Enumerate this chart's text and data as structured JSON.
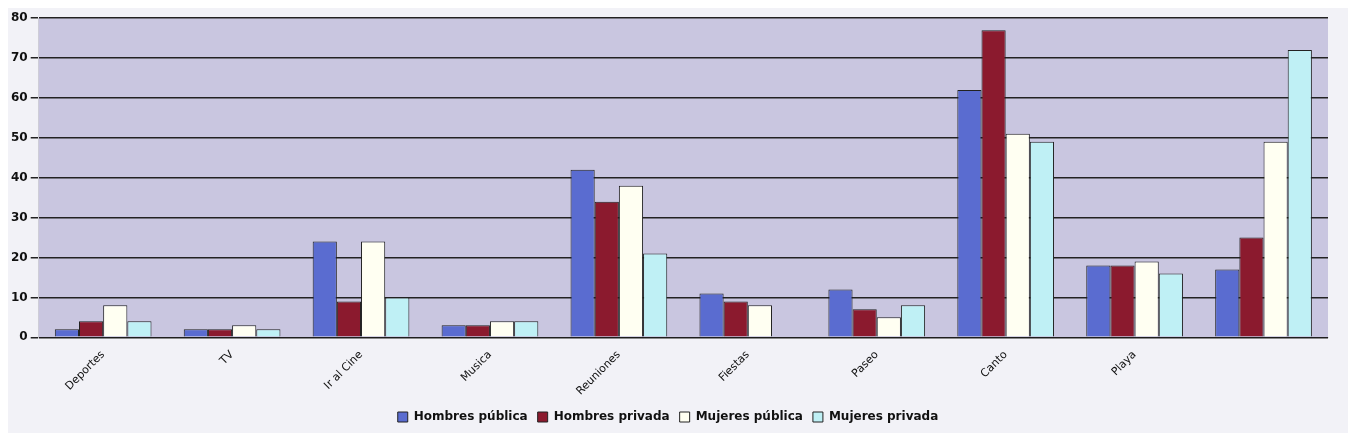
{
  "chart_data": {
    "type": "bar",
    "categories": [
      "Deportes",
      "TV",
      "Ir al Cine",
      "Musica",
      "Reuniones",
      "Fiestas",
      "Paseo",
      "Canto",
      "Playa",
      null
    ],
    "series": [
      {
        "name": "Hombres pública",
        "color": "#5a6cd0",
        "values": [
          2,
          2,
          24,
          3,
          42,
          11,
          12,
          62,
          18,
          17
        ]
      },
      {
        "name": "Hombres privada",
        "color": "#8b1a2e",
        "values": [
          4,
          2,
          9,
          3,
          34,
          9,
          7,
          77,
          18,
          25
        ]
      },
      {
        "name": "Mujeres pública",
        "color": "#fffff2",
        "values": [
          8,
          3,
          24,
          4,
          38,
          8,
          5,
          51,
          19,
          49
        ]
      },
      {
        "name": "Mujeres privada",
        "color": "#bff0f5",
        "values": [
          4,
          2,
          10,
          4,
          21,
          0,
          8,
          49,
          16,
          72
        ]
      }
    ],
    "ylim": [
      0,
      80
    ],
    "yticks": [
      0,
      10,
      20,
      30,
      40,
      50,
      60,
      70,
      80
    ],
    "grid": "y",
    "legend": "bottom"
  }
}
